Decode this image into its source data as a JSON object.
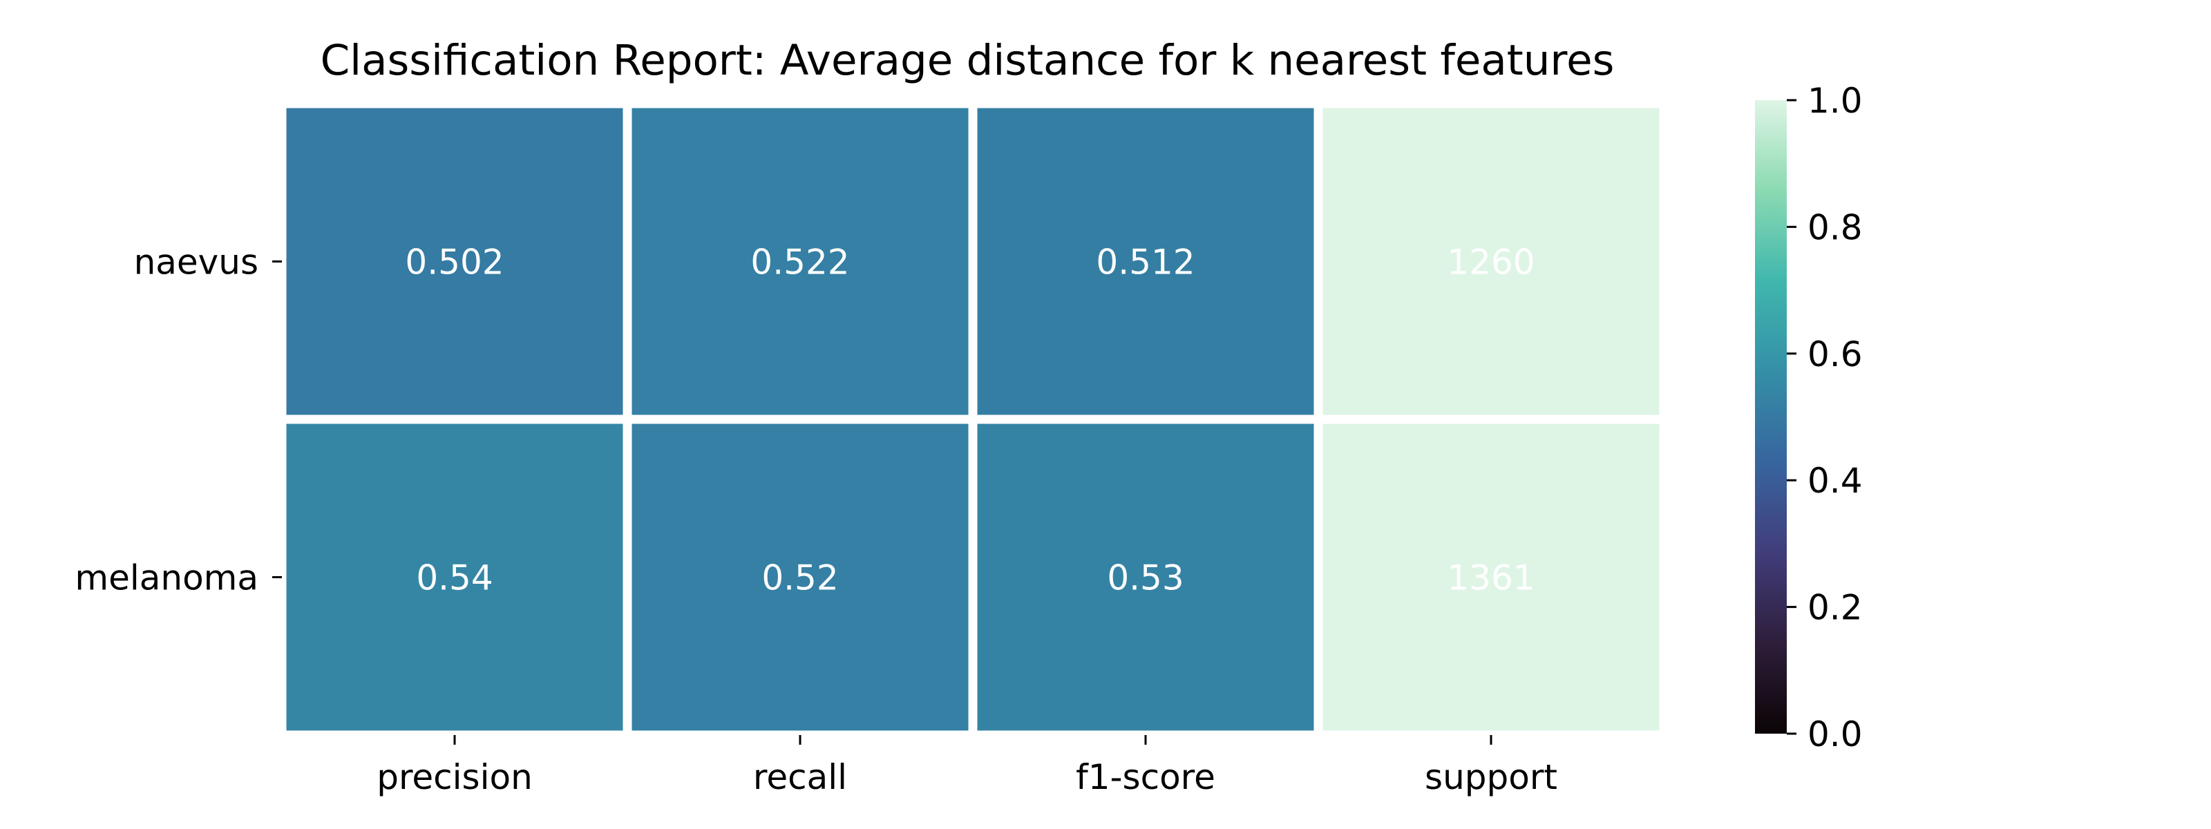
{
  "chart_data": {
    "type": "heatmap",
    "title": "Classification Report: Average distance for k nearest features",
    "xlabel": "",
    "ylabel": "",
    "x_categories": [
      "precision",
      "recall",
      "f1-score",
      "support"
    ],
    "y_categories": [
      "naevus",
      "melanoma"
    ],
    "values": [
      [
        0.502,
        0.522,
        0.512,
        1260
      ],
      [
        0.54,
        0.52,
        0.53,
        1361
      ]
    ],
    "cell_labels": [
      [
        "0.502",
        "0.522",
        "0.512",
        "1260"
      ],
      [
        "0.54",
        "0.52",
        "0.53",
        "1361"
      ]
    ],
    "colormap": "mako",
    "color_range": [
      0.0,
      1.0
    ],
    "colorbar_ticks": [
      "0.0",
      "0.2",
      "0.4",
      "0.6",
      "0.8",
      "1.0"
    ],
    "colorbar_stops": [
      "#0b0405",
      "#2e1e3b",
      "#413d7b",
      "#37659e",
      "#348fa7",
      "#40b7ad",
      "#8bdab2",
      "#def5e5"
    ],
    "grid": false,
    "legend": "right colorbar"
  }
}
